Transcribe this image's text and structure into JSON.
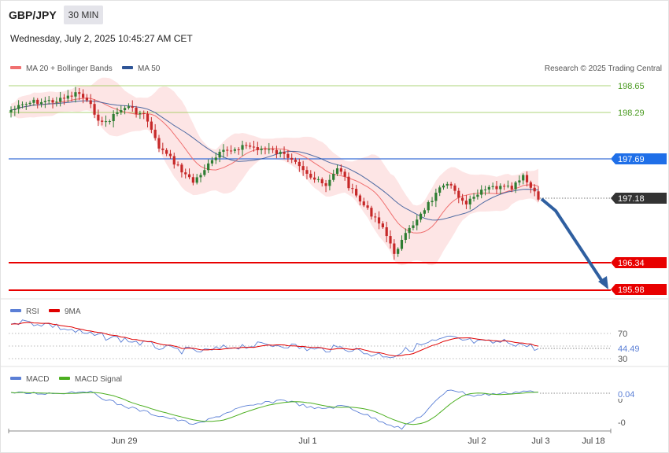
{
  "header": {
    "symbol": "GBP/JPY",
    "timeframe": "30 MIN",
    "datetime": "Wednesday, July 2, 2025 10:45:27 AM CET"
  },
  "main_legend": [
    {
      "label": "MA 20 + Bollinger Bands",
      "color": "#f07070"
    },
    {
      "label": "MA 50",
      "color": "#2f5597"
    }
  ],
  "copyright": "Research © 2025 Trading Central",
  "colors": {
    "resistance": "#8cc63f",
    "pivot": "#3b6fd8",
    "support": "#e80000",
    "last_price": "#333333",
    "candle_up": "#2e7d32",
    "candle_down": "#c62828",
    "bollinger_fill": "#fde0e0",
    "arrow": "#2f5fa0"
  },
  "levels": {
    "r2": "198.65",
    "r1": "198.29",
    "pivot": "197.69",
    "last": "197.18",
    "s1": "196.34",
    "s2": "195.98"
  },
  "rsi_panel": {
    "legend": [
      {
        "label": "RSI",
        "color": "#5b7fd6"
      },
      {
        "label": "9MA",
        "color": "#e00000"
      }
    ],
    "ticks": [
      "70",
      "30"
    ],
    "hidden_tick": "50",
    "value": "44.49"
  },
  "macd_panel": {
    "legend": [
      {
        "label": "MACD",
        "color": "#5b7fd6"
      },
      {
        "label": "MACD Signal",
        "color": "#4caf20"
      }
    ],
    "ticks": [
      "0",
      "-0"
    ],
    "value": "0.04"
  },
  "x_axis": [
    "Jun 29",
    "Jul 1",
    "Jul 2",
    "Jul 3",
    "Jul 18"
  ],
  "chart_data": {
    "type": "candlestick",
    "symbol": "GBP/JPY",
    "timeframe": "30 MIN",
    "ylim": [
      195.98,
      198.65
    ],
    "price_levels": [
      198.65,
      198.29,
      197.69,
      197.18,
      196.34,
      195.98
    ],
    "last_price": 197.18,
    "close_path": [
      {
        "x": "Jun 27",
        "close": 198.45
      },
      {
        "x": "Jun 29",
        "close": 198.5
      },
      {
        "x": "Jun 30",
        "close": 197.55
      },
      {
        "x": "Jun 30",
        "close": 197.85
      },
      {
        "x": "Jul 1",
        "close": 197.75
      },
      {
        "x": "Jul 1",
        "close": 196.4
      },
      {
        "x": "Jul 1",
        "close": 197.45
      },
      {
        "x": "Jul 2",
        "close": 197.3
      },
      {
        "x": "Jul 2",
        "close": 197.18
      }
    ],
    "forecast": {
      "from": 197.18,
      "to": 195.98
    },
    "rsi": {
      "last": 44.49,
      "levels": [
        70,
        30
      ]
    },
    "macd": {
      "last": 0.04
    }
  }
}
